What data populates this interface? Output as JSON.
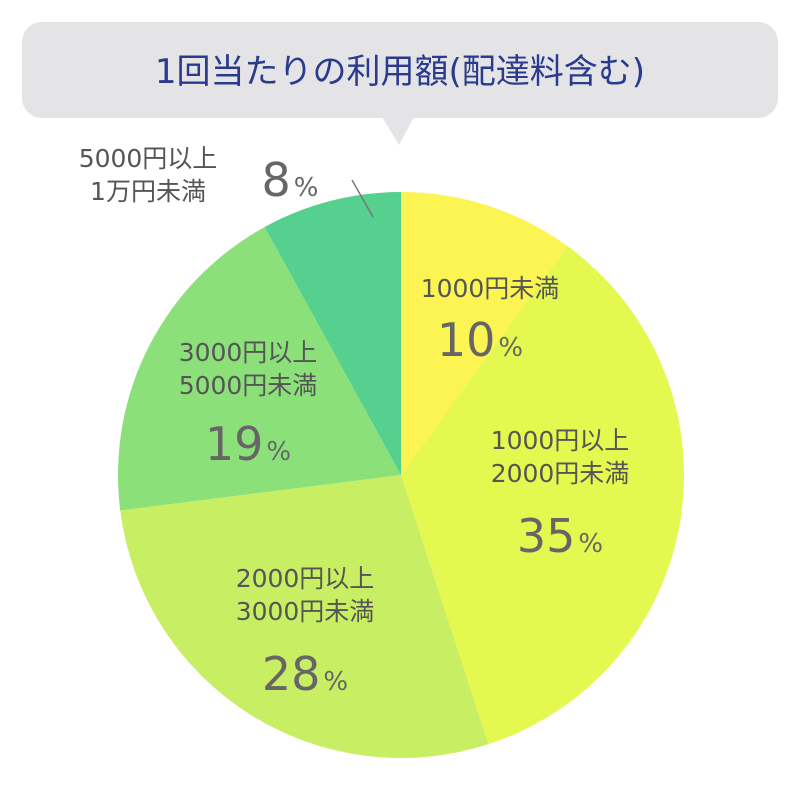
{
  "chart_data": {
    "type": "pie",
    "title": "1回当たりの利用額(配達料含む)",
    "unit": "%",
    "slices": [
      {
        "label_lines": [
          "1000円未満"
        ],
        "value": 10,
        "value_text": "10",
        "color": "#fcf453"
      },
      {
        "label_lines": [
          "1000円以上",
          "2000円未満"
        ],
        "value": 35,
        "value_text": "35",
        "color": "#e5f84f"
      },
      {
        "label_lines": [
          "2000円以上",
          "3000円未満"
        ],
        "value": 28,
        "value_text": "28",
        "color": "#c8ee63"
      },
      {
        "label_lines": [
          "3000円以上",
          "5000円未満"
        ],
        "value": 19,
        "value_text": "19",
        "color": "#8ce07a"
      },
      {
        "label_lines": [
          "5000円以上",
          "1万円未満"
        ],
        "value": 8,
        "value_text": "8",
        "color": "#55d08f"
      }
    ],
    "start": "top",
    "direction": "clockwise",
    "legend": "none"
  }
}
